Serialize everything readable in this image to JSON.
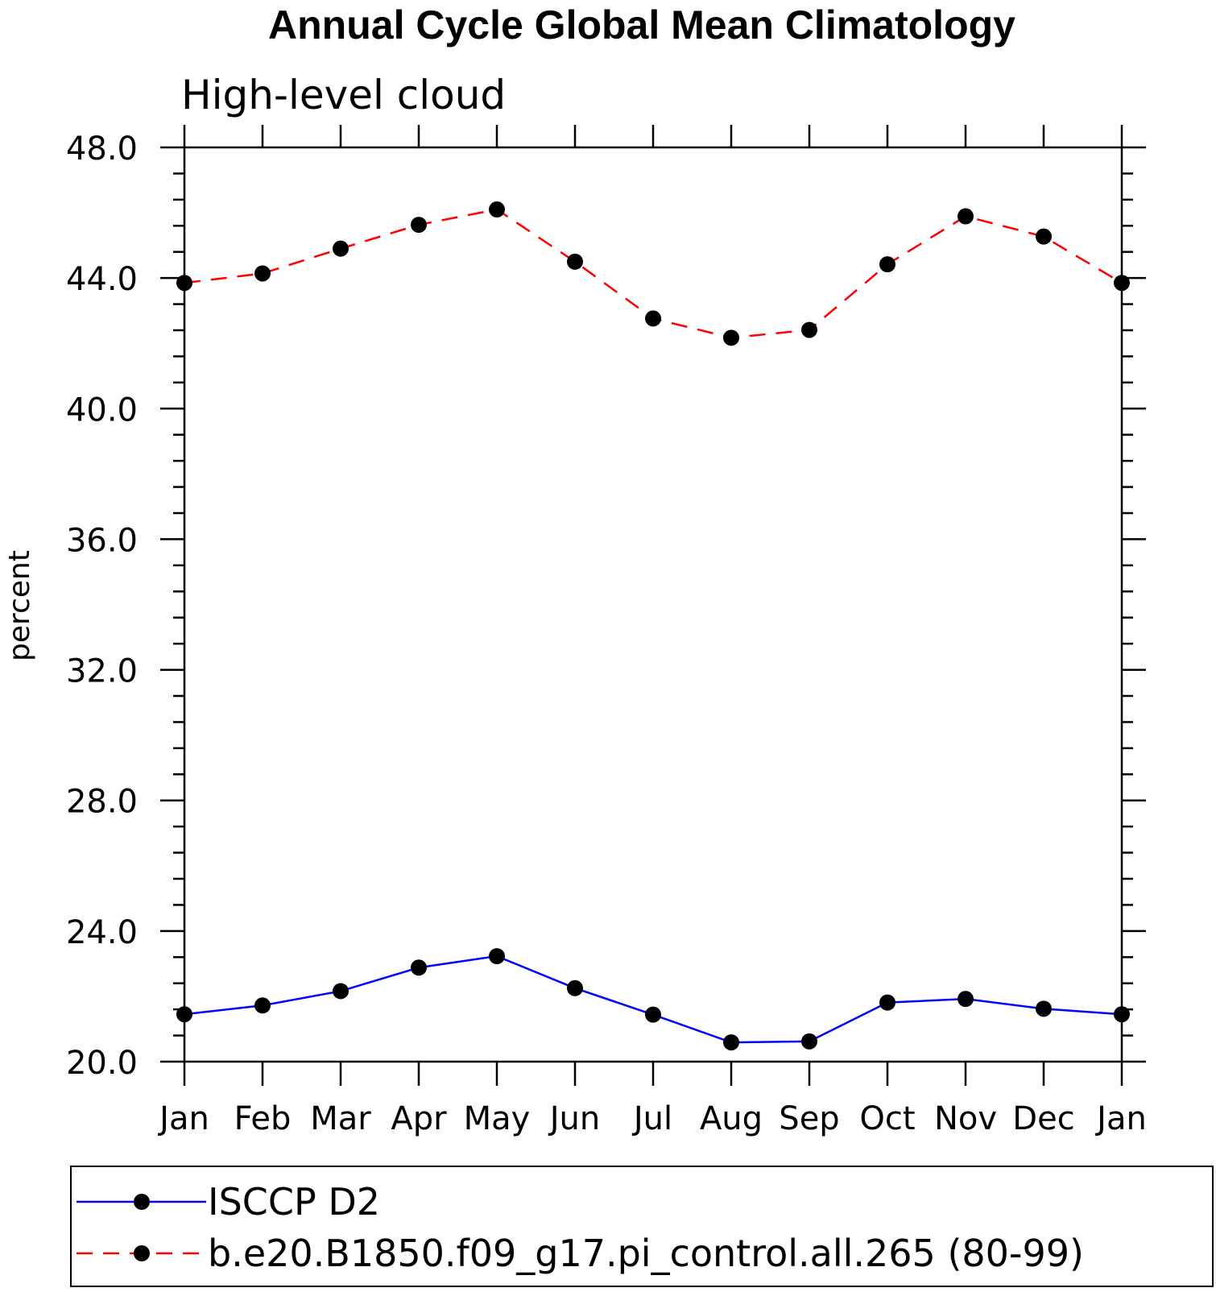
{
  "chart_data": {
    "type": "line",
    "title": "Annual Cycle Global Mean Climatology",
    "subtitle": "High-level cloud",
    "xlabel": "",
    "ylabel": "percent",
    "categories": [
      "Jan",
      "Feb",
      "Mar",
      "Apr",
      "May",
      "Jun",
      "Jul",
      "Aug",
      "Sep",
      "Oct",
      "Nov",
      "Dec",
      "Jan"
    ],
    "ylim": [
      20.0,
      48.0
    ],
    "yticks": [
      "20.0",
      "24.0",
      "28.0",
      "32.0",
      "36.0",
      "40.0",
      "44.0",
      "48.0"
    ],
    "grid": false,
    "legend_position": "bottom",
    "series": [
      {
        "name": "ISCCP D2",
        "color": "#0000ff",
        "dash": "solid",
        "marker": "filled-circle",
        "values": [
          21.45,
          21.72,
          22.16,
          22.88,
          23.23,
          22.25,
          21.44,
          20.59,
          20.62,
          21.81,
          21.92,
          21.62,
          21.45
        ]
      },
      {
        "name": "b.e20.B1850.f09_g17.pi_control.all.265 (80-99)",
        "color": "#ff0000",
        "dash": "dashed",
        "marker": "filled-circle",
        "values": [
          43.85,
          44.14,
          44.9,
          45.63,
          46.1,
          44.5,
          42.76,
          42.17,
          42.41,
          44.42,
          45.89,
          45.27,
          43.85
        ]
      }
    ]
  }
}
